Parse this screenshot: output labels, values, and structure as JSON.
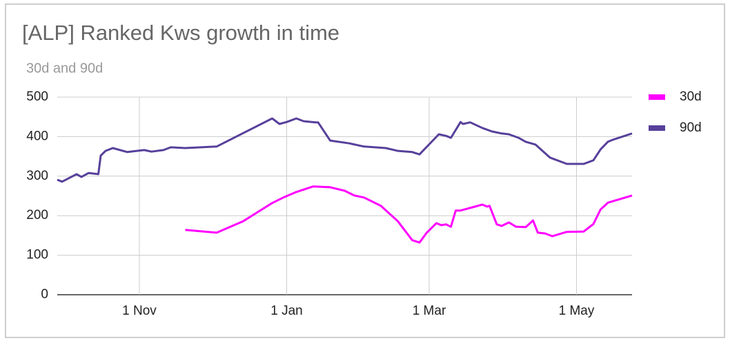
{
  "chart_data": {
    "type": "line",
    "title": "[ALP] Ranked Kws growth in time",
    "subtitle": "30d and 90d",
    "xlim": [
      "28 Sep",
      "24 May"
    ],
    "xticks": [
      "1 Nov",
      "1 Jan",
      "1 Mar",
      "1 May"
    ],
    "ylim": [
      0,
      500
    ],
    "yticks": [
      0,
      100,
      200,
      300,
      400,
      500
    ],
    "grid": true,
    "legend": "right",
    "series": [
      {
        "name": "30d",
        "color": "#ff00ff",
        "x": [
          "20 Nov",
          "3 Dec",
          "14 Dec",
          "26 Dec",
          "31 Dec",
          "5 Jan",
          "12 Jan",
          "19 Jan",
          "25 Jan",
          "29 Jan",
          "2 Feb",
          "9 Feb",
          "16 Feb",
          "22 Feb",
          "25 Feb",
          "28 Feb",
          "4 Mar",
          "6 Mar",
          "8 Mar",
          "10 Mar",
          "12 Mar",
          "14 Mar",
          "20 Mar",
          "23 Mar",
          "25 Mar",
          "26 Mar",
          "29 Mar",
          "31 Mar",
          "3 Apr",
          "6 Apr",
          "10 Apr",
          "13 Apr",
          "15 Apr",
          "18 Apr",
          "21 Apr",
          "27 Apr",
          "4 May",
          "8 May",
          "11 May",
          "13 May",
          "14 May",
          "18 May",
          "24 May"
        ],
        "values": [
          164,
          157,
          186,
          232,
          247,
          260,
          274,
          272,
          263,
          251,
          246,
          225,
          186,
          138,
          132,
          157,
          181,
          176,
          178,
          172,
          213,
          213,
          223,
          228,
          223,
          225,
          178,
          174,
          183,
          172,
          171,
          188,
          157,
          155,
          148,
          159,
          160,
          179,
          216,
          227,
          233,
          240,
          251
        ]
      },
      {
        "name": "90d",
        "color": "#57409b",
        "x": [
          "28 Sep",
          "30 Sep",
          "6 Oct",
          "8 Oct",
          "11 Oct",
          "15 Oct",
          "16 Oct",
          "18 Oct",
          "21 Oct",
          "27 Oct",
          "3 Nov",
          "6 Nov",
          "11 Nov",
          "14 Nov",
          "20 Nov",
          "3 Dec",
          "26 Dec",
          "29 Dec",
          "1 Jan",
          "5 Jan",
          "8 Jan",
          "13 Jan",
          "14 Jan",
          "19 Jan",
          "27 Jan",
          "2 Feb",
          "11 Feb",
          "16 Feb",
          "22 Feb",
          "25 Feb",
          "5 Mar",
          "8 Mar",
          "10 Mar",
          "14 Mar",
          "15 Mar",
          "18 Mar",
          "23 Mar",
          "27 Mar",
          "31 Mar",
          "3 Apr",
          "7 Apr",
          "10 Apr",
          "14 Apr",
          "20 Apr",
          "27 Apr",
          "4 May",
          "8 May",
          "11 May",
          "14 May",
          "16 May",
          "24 May"
        ],
        "values": [
          291,
          286,
          305,
          298,
          308,
          305,
          352,
          364,
          371,
          361,
          366,
          362,
          366,
          373,
          371,
          375,
          446,
          432,
          437,
          446,
          439,
          436,
          436,
          390,
          383,
          375,
          371,
          364,
          361,
          355,
          406,
          402,
          397,
          437,
          432,
          436,
          422,
          413,
          408,
          406,
          397,
          387,
          380,
          347,
          331,
          331,
          340,
          368,
          387,
          392,
          408
        ]
      }
    ]
  }
}
